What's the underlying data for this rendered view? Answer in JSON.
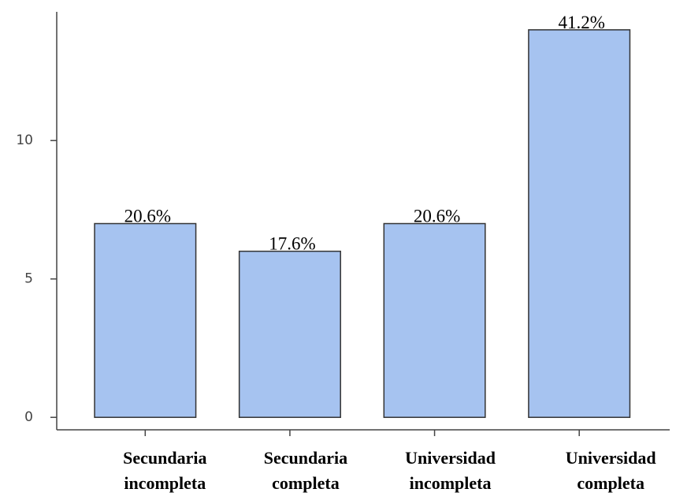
{
  "chart_data": {
    "type": "bar",
    "categories": [
      "Secundaria incompleta",
      "Secundaria completa",
      "Universidad incompleta",
      "Universidad completa"
    ],
    "values": [
      7,
      6,
      7,
      14
    ],
    "value_labels": [
      "20.6%",
      "17.6%",
      "20.6%",
      "41.2%"
    ],
    "color": "#a6c3f0",
    "ylim": [
      -0.45,
      14.65
    ],
    "yticks": [
      0,
      5,
      10
    ],
    "grid": false
  }
}
